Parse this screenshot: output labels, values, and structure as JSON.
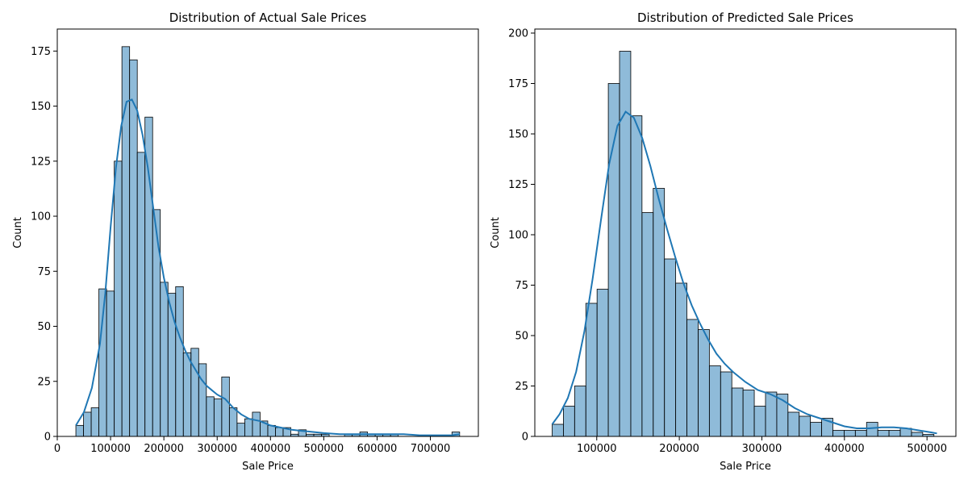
{
  "chart_data": [
    {
      "type": "bar",
      "title": "Distribution of Actual Sale Prices",
      "xlabel": "Sale Price",
      "ylabel": "Count",
      "xlim": [
        0,
        790000
      ],
      "ylim": [
        0,
        185
      ],
      "xticks": [
        0,
        100000,
        200000,
        300000,
        400000,
        500000,
        600000,
        700000
      ],
      "yticks": [
        0,
        25,
        50,
        75,
        100,
        125,
        150,
        175
      ],
      "bin_start": 34900,
      "bin_width": 14400,
      "counts": [
        5,
        11,
        13,
        67,
        66,
        125,
        177,
        171,
        129,
        145,
        103,
        70,
        65,
        68,
        38,
        40,
        33,
        18,
        17,
        27,
        13,
        6,
        8,
        11,
        7,
        5,
        4,
        4,
        1,
        3,
        1,
        1,
        1,
        0,
        0,
        1,
        1,
        2,
        1,
        1,
        1,
        1,
        0,
        0,
        0,
        0,
        0,
        0,
        0,
        2
      ],
      "kde": {
        "x": [
          35000,
          50000,
          65000,
          80000,
          90000,
          100000,
          110000,
          120000,
          130000,
          140000,
          150000,
          160000,
          170000,
          180000,
          190000,
          200000,
          210000,
          220000,
          230000,
          240000,
          250000,
          260000,
          270000,
          280000,
          290000,
          300000,
          315000,
          330000,
          345000,
          360000,
          380000,
          400000,
          420000,
          440000,
          460000,
          480000,
          500000,
          530000,
          560000,
          590000,
          620000,
          650000,
          680000,
          710000,
          740000,
          755000
        ],
        "y": [
          5,
          11,
          22,
          42,
          65,
          95,
          122,
          141,
          152,
          153,
          148,
          137,
          122,
          104,
          86,
          72,
          61,
          52,
          45,
          39,
          34,
          30,
          26,
          23,
          21,
          19,
          17,
          13,
          10,
          8,
          7,
          5,
          4,
          3,
          2.5,
          2,
          1.5,
          1,
          1,
          1,
          1,
          1,
          0.5,
          0.5,
          0.5,
          1
        ]
      }
    },
    {
      "type": "bar",
      "title": "Distribution of Predicted Sale Prices",
      "xlabel": "Sale Price",
      "ylabel": "Count",
      "xlim": [
        25000,
        535000
      ],
      "ylim": [
        0,
        202
      ],
      "xticks": [
        100000,
        200000,
        300000,
        400000,
        500000
      ],
      "yticks": [
        0,
        25,
        50,
        75,
        100,
        125,
        150,
        175,
        200
      ],
      "bin_start": 46000,
      "bin_width": 13600,
      "counts": [
        6,
        15,
        25,
        66,
        73,
        175,
        191,
        159,
        111,
        123,
        88,
        76,
        58,
        53,
        35,
        32,
        24,
        23,
        15,
        22,
        21,
        12,
        10,
        7,
        9,
        3,
        3,
        3,
        7,
        3,
        3,
        4,
        2,
        1
      ],
      "kde": {
        "x": [
          46000,
          55000,
          65000,
          75000,
          85000,
          95000,
          105000,
          115000,
          125000,
          135000,
          145000,
          155000,
          165000,
          175000,
          185000,
          195000,
          205000,
          215000,
          225000,
          235000,
          245000,
          255000,
          265000,
          280000,
          295000,
          310000,
          325000,
          340000,
          355000,
          370000,
          385000,
          400000,
          415000,
          430000,
          445000,
          460000,
          475000,
          490000,
          505000,
          512000
        ],
        "y": [
          6,
          11,
          19,
          32,
          52,
          78,
          107,
          135,
          154,
          161,
          158,
          148,
          134,
          118,
          103,
          89,
          76,
          65,
          56,
          48,
          41,
          36,
          32,
          27,
          23,
          21,
          18,
          14,
          11,
          9,
          7,
          5,
          4,
          4,
          4.5,
          4.5,
          4,
          3,
          2,
          1.5
        ]
      }
    }
  ]
}
